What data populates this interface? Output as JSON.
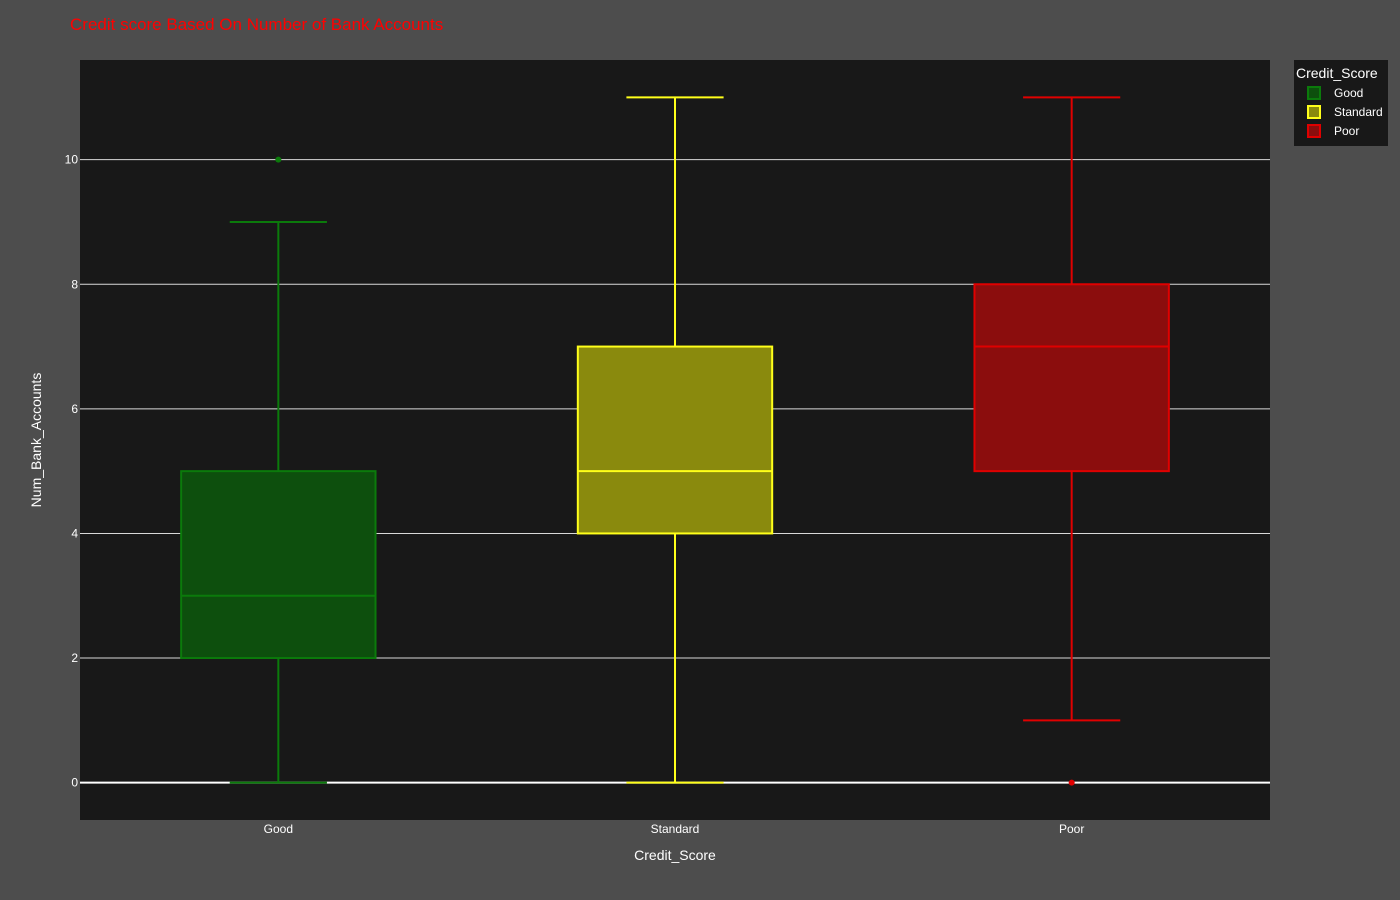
{
  "chart_data": {
    "type": "box",
    "title": "Credit score Based On Number of Bank Accounts",
    "title_color": "#ff0000",
    "xlabel": "Credit_Score",
    "ylabel": "Num_Bank_Accounts",
    "categories": [
      "Good",
      "Standard",
      "Poor"
    ],
    "y_ticks": [
      0,
      2,
      4,
      6,
      8,
      10
    ],
    "ylim": [
      -0.6,
      11.6
    ],
    "grid": true,
    "legend": {
      "title": "Credit_Score",
      "placement": "top-right"
    },
    "background": {
      "page": "#4d4d4d",
      "plot": "#181818",
      "grid": "#d9d9d9"
    },
    "series": [
      {
        "name": "Good",
        "color": "#0b7a0b",
        "fill": "#0d4f0d",
        "min": 0,
        "q1": 2,
        "median": 3,
        "q3": 5,
        "max": 9,
        "outliers": [
          10
        ]
      },
      {
        "name": "Standard",
        "color": "#ffff1a",
        "fill": "#8a8a0d",
        "min": 0,
        "q1": 4,
        "median": 5,
        "q3": 7,
        "max": 11,
        "outliers": []
      },
      {
        "name": "Poor",
        "color": "#e00000",
        "fill": "#8b0d0d",
        "min": 1,
        "q1": 5,
        "median": 7,
        "q3": 8,
        "max": 11,
        "outliers": [
          0
        ]
      }
    ]
  }
}
